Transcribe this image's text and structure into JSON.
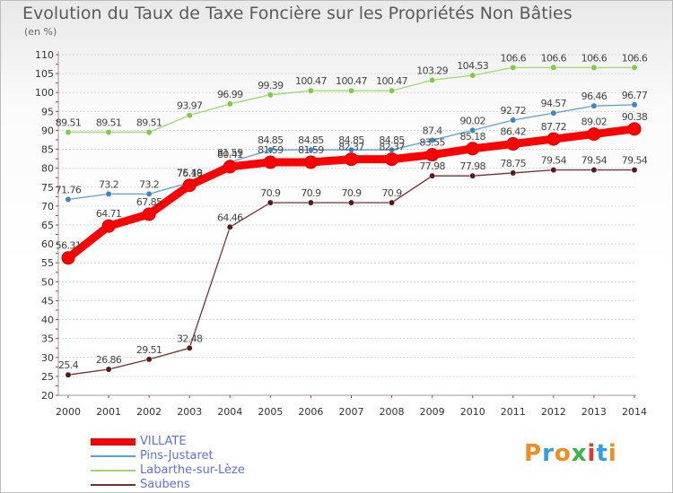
{
  "header": {
    "title": "Evolution du Taux de Taxe Foncière sur les Propriétés Non Bâties",
    "unit": "(en %)"
  },
  "logo": {
    "letters": [
      "P",
      "r",
      "o",
      "x",
      "i",
      "t",
      "i"
    ],
    "colors": [
      "#f28c1e",
      "#2f9ee8",
      "#f28c1e",
      "#3ab54a",
      "#e8342a",
      "#2f9ee8",
      "#f28c1e"
    ]
  },
  "chart_data": {
    "type": "line",
    "title": "Evolution du Taux de Taxe Foncière sur les Propriétés Non Bâties",
    "ylabel": "(en %)",
    "xlabel": "",
    "ylim": [
      20,
      110
    ],
    "yticks": [
      20,
      25,
      30,
      35,
      40,
      45,
      50,
      55,
      60,
      65,
      70,
      75,
      80,
      85,
      90,
      95,
      100,
      105,
      110
    ],
    "x": [
      2000,
      2001,
      2002,
      2003,
      2004,
      2005,
      2006,
      2007,
      2008,
      2009,
      2010,
      2011,
      2012,
      2013,
      2014
    ],
    "legend_position": "bottom-left",
    "series": [
      {
        "name": "VILLATE",
        "color": "#ff0000",
        "emphasis": true,
        "values": [
          56.31,
          64.71,
          67.85,
          75.49,
          80.41,
          81.59,
          81.59,
          82.37,
          82.37,
          83.55,
          85.18,
          86.42,
          87.72,
          89.02,
          90.38
        ],
        "labels": [
          "56.31",
          "64.71",
          "67.85",
          "75.49",
          "80.41",
          "81.59",
          "81.59",
          "82.37",
          "82.37",
          "83.55",
          "85.18",
          "86.42",
          "87.72",
          "89.02",
          "90.38"
        ]
      },
      {
        "name": "Pins-Justaret",
        "color": "#5aa0d8",
        "marker": "#3a86c8",
        "values": [
          71.76,
          73.2,
          73.2,
          76.18,
          81.59,
          84.85,
          84.85,
          84.85,
          84.85,
          87.4,
          90.02,
          92.72,
          94.57,
          96.46,
          96.77
        ],
        "labels": [
          "71.76",
          "73.2",
          "73.2",
          "76.18",
          "81.59",
          "84.85",
          "84.85",
          "84.85",
          "84.85",
          "87.4",
          "90.02",
          "92.72",
          "94.57",
          "96.46",
          "96.77"
        ]
      },
      {
        "name": "Labarthe-sur-Lèze",
        "color": "#99dd66",
        "marker": "#7ccc44",
        "values": [
          89.51,
          89.51,
          89.51,
          93.97,
          96.99,
          99.39,
          100.47,
          100.47,
          100.47,
          103.29,
          104.53,
          106.6,
          106.6,
          106.6,
          106.6
        ],
        "labels": [
          "89.51",
          "89.51",
          "89.51",
          "93.97",
          "96.99",
          "99.39",
          "100.47",
          "100.47",
          "100.47",
          "103.29",
          "104.53",
          "106.6",
          "106.6",
          "106.6",
          "106.6"
        ]
      },
      {
        "name": "Saubens",
        "color": "#7a2f2f",
        "marker": "#5a1818",
        "values": [
          25.4,
          26.86,
          29.51,
          32.48,
          64.46,
          70.9,
          70.9,
          70.9,
          70.9,
          77.98,
          77.98,
          78.75,
          79.54,
          79.54,
          79.54
        ],
        "labels": [
          "25.4",
          "26.86",
          "29.51",
          "32.48",
          "64.46",
          "70.9",
          "70.9",
          "70.9",
          "70.9",
          "77.98",
          "77.98",
          "78.75",
          "79.54",
          "79.54",
          "79.54"
        ]
      }
    ]
  }
}
